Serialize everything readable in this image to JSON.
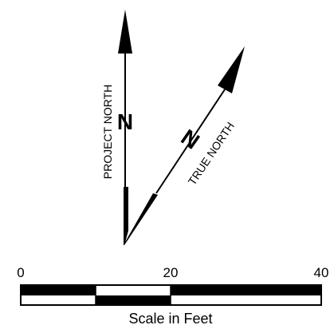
{
  "north_arrow": {
    "project_label": "PROJECT NORTH",
    "true_label": "TRUE NORTH",
    "project_letter": "N",
    "true_letter": "N"
  },
  "scale_bar": {
    "tick_labels": [
      "0",
      "20",
      "40"
    ],
    "caption": "Scale in Feet",
    "max_feet": 40,
    "segment_feet": 10
  },
  "colors": {
    "ink": "#000000",
    "paper": "#ffffff"
  }
}
